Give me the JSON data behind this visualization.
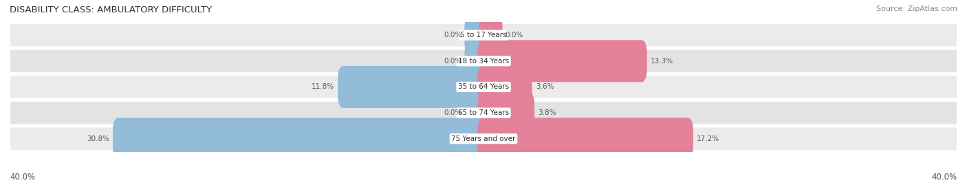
{
  "title": "DISABILITY CLASS: AMBULATORY DIFFICULTY",
  "source": "Source: ZipAtlas.com",
  "categories": [
    "5 to 17 Years",
    "18 to 34 Years",
    "35 to 64 Years",
    "65 to 74 Years",
    "75 Years and over"
  ],
  "male_values": [
    0.0,
    0.0,
    11.8,
    0.0,
    30.8
  ],
  "female_values": [
    0.0,
    13.3,
    3.6,
    3.8,
    17.2
  ],
  "max_val": 40.0,
  "male_color": "#92bcd8",
  "female_color": "#e5809a",
  "row_bg_even": "#ebebeb",
  "row_bg_odd": "#e0e0e0",
  "row_border_color": "#d0d0d0",
  "title_fontsize": 9.5,
  "label_fontsize": 7.5,
  "value_fontsize": 7.5,
  "tick_fontsize": 8.5,
  "source_fontsize": 8,
  "bar_height": 0.62,
  "x_left_label": "40.0%",
  "x_right_label": "40.0%"
}
